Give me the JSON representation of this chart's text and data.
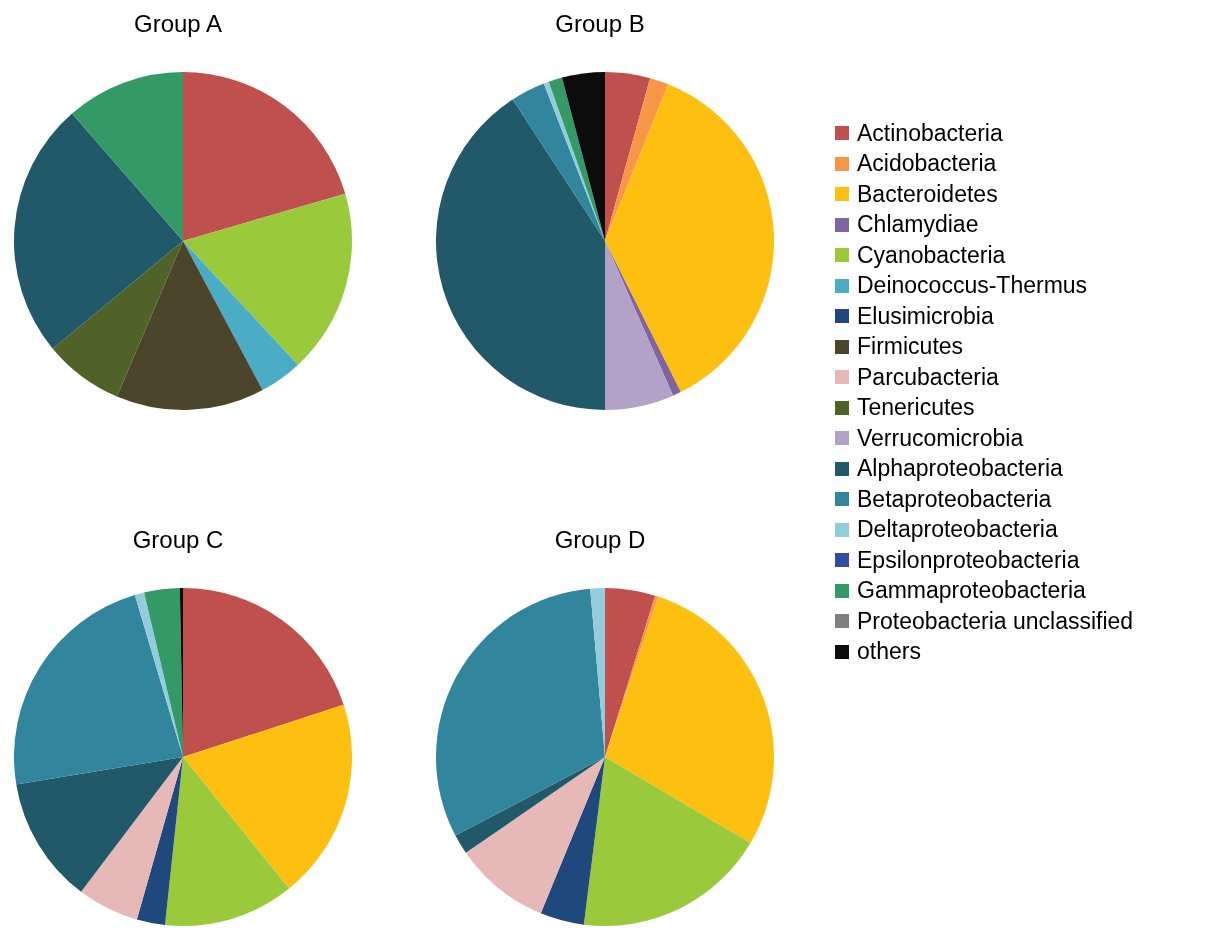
{
  "chart_data": [
    {
      "type": "pie",
      "title": "Group A",
      "legend": "right",
      "categories": [
        "Actinobacteria",
        "Acidobacteria",
        "Bacteroidetes",
        "Chlamydiae",
        "Cyanobacteria",
        "Deinococcus-Thermus",
        "Elusimicrobia",
        "Firmicutes",
        "Parcubacteria",
        "Tenericutes",
        "Verrucomicrobia",
        "Alphaproteobacteria",
        "Betaproteobacteria",
        "Deltaproteobacteria",
        "Epsilonproteobacteria",
        "Gammaproteobacteria",
        "Proteobacteria unclassified",
        "others"
      ],
      "values": [
        20.5,
        0,
        0,
        0,
        17.6,
        4.1,
        0,
        14.2,
        0,
        7.6,
        0,
        24.6,
        0,
        0,
        0,
        11.4,
        0,
        0
      ],
      "colors": [
        "#c0504d",
        "#f79646",
        "#fdc010",
        "#8064a2",
        "#9bc93c",
        "#4bacc6",
        "#1f497d",
        "#4b452c",
        "#e6b9b8",
        "#4f6228",
        "#b3a2c7",
        "#215968",
        "#31859c",
        "#93cddd",
        "#2e4ea0",
        "#339966",
        "#808080",
        "#0c0c0c"
      ]
    },
    {
      "type": "pie",
      "title": "Group B",
      "categories": [
        null,
        null,
        null,
        null,
        null,
        null,
        null,
        null,
        null,
        null,
        null,
        null,
        null,
        null,
        null,
        null,
        null,
        null
      ],
      "values": [
        4.3,
        1.8,
        36.5,
        0.8,
        0,
        0,
        0,
        0,
        0,
        0,
        6.6,
        40.8,
        3.3,
        0.5,
        0,
        1.3,
        0,
        4.1
      ],
      "colors": [
        "#c0504d",
        "#f79646",
        "#fdc010",
        "#8064a2",
        "#9bc93c",
        "#4bacc6",
        "#1f497d",
        "#4b452c",
        "#e6b9b8",
        "#4f6228",
        "#b3a2c7",
        "#215968",
        "#31859c",
        "#93cddd",
        "#2e4ea0",
        "#339966",
        "#808080",
        "#0c0c0c"
      ]
    },
    {
      "type": "pie",
      "title": "Group C",
      "categories": [
        null,
        null,
        null,
        null,
        null,
        null,
        null,
        null,
        null,
        null,
        null,
        null,
        null,
        null,
        null,
        null,
        null,
        null
      ],
      "values": [
        20.0,
        0,
        19.2,
        0,
        12.5,
        0,
        2.7,
        0,
        5.9,
        0,
        0,
        12.1,
        23.0,
        0.9,
        0,
        3.4,
        0,
        0.3
      ],
      "colors": [
        "#c0504d",
        "#f79646",
        "#fdc010",
        "#8064a2",
        "#9bc93c",
        "#4bacc6",
        "#1f497d",
        "#4b452c",
        "#e6b9b8",
        "#4f6228",
        "#b3a2c7",
        "#215968",
        "#31859c",
        "#93cddd",
        "#2e4ea0",
        "#339966",
        "#808080",
        "#0c0c0c"
      ]
    },
    {
      "type": "pie",
      "title": "Group D",
      "categories": [
        null,
        null,
        null,
        null,
        null,
        null,
        null,
        null,
        null,
        null,
        null,
        null,
        null,
        null,
        null,
        null,
        null,
        null
      ],
      "values": [
        4.8,
        0.3,
        28.4,
        0,
        18.5,
        0,
        4.2,
        0,
        9.2,
        0,
        0,
        1.9,
        31.3,
        1.4,
        0,
        0,
        0,
        0
      ],
      "colors": [
        "#c0504d",
        "#f79646",
        "#fdc010",
        "#8064a2",
        "#9bc93c",
        "#4bacc6",
        "#1f497d",
        "#4b452c",
        "#e6b9b8",
        "#4f6228",
        "#b3a2c7",
        "#215968",
        "#31859c",
        "#93cddd",
        "#2e4ea0",
        "#339966",
        "#808080",
        "#0c0c0c"
      ]
    }
  ]
}
